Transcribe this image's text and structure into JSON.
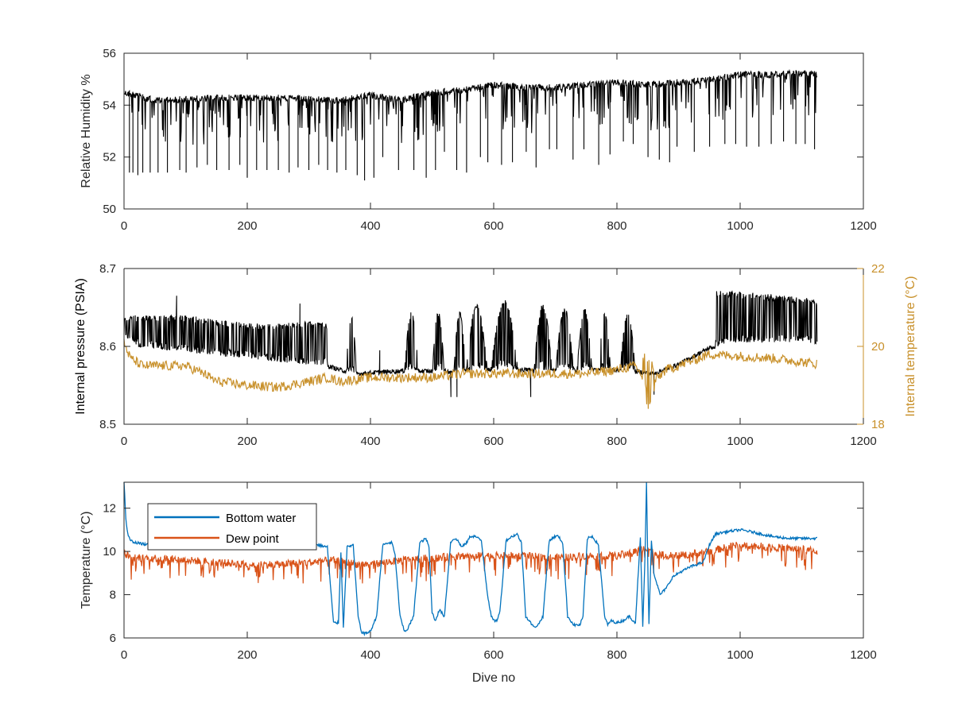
{
  "chart_data": [
    {
      "type": "line",
      "xlabel": "",
      "ylabel": "Relative Humidity %",
      "xlim": [
        0,
        1200
      ],
      "ylim": [
        50,
        56
      ],
      "xticks": [
        0,
        200,
        400,
        600,
        800,
        1000,
        1200
      ],
      "yticks": [
        50,
        52,
        54,
        56
      ],
      "x_tick_labels": [
        "0",
        "200",
        "400",
        "600",
        "800",
        "1000",
        "1200"
      ],
      "y_tick_labels": [
        "50",
        "52",
        "54",
        "56"
      ],
      "grid": false,
      "series": [
        {
          "color": "#000000",
          "envelope_x": [
            0,
            50,
            100,
            150,
            200,
            250,
            300,
            350,
            400,
            450,
            500,
            550,
            600,
            650,
            700,
            750,
            800,
            850,
            900,
            950,
            1000,
            1050,
            1100,
            1125
          ],
          "upper": [
            54.6,
            54.3,
            54.35,
            54.4,
            54.4,
            54.4,
            54.35,
            54.3,
            54.5,
            54.3,
            54.6,
            54.7,
            54.9,
            54.8,
            54.8,
            54.9,
            55.0,
            54.9,
            55.0,
            55.1,
            55.3,
            55.3,
            55.35,
            55.3
          ],
          "dips_x": [
            8,
            14,
            22,
            30,
            42,
            55,
            70,
            90,
            100,
            118,
            135,
            150,
            170,
            188,
            200,
            215,
            232,
            250,
            268,
            282,
            300,
            316,
            330,
            345,
            360,
            378,
            390,
            405,
            420,
            445,
            470,
            490,
            505,
            520,
            540,
            556,
            578,
            590,
            612,
            630,
            652,
            668,
            690,
            702,
            728,
            746,
            770,
            788,
            810,
            826,
            850,
            868,
            885,
            897,
            925,
            950,
            975,
            992,
            1010,
            1030,
            1050,
            1070,
            1090,
            1105,
            1120
          ],
          "dips_y": [
            51.4,
            51.4,
            51.3,
            51.4,
            51.4,
            51.4,
            51.4,
            51.5,
            51.4,
            51.6,
            51.7,
            51.5,
            51.5,
            51.7,
            51.2,
            51.5,
            51.5,
            51.5,
            51.4,
            51.6,
            51.5,
            51.7,
            51.5,
            51.4,
            51.5,
            51.3,
            51.1,
            51.2,
            52.0,
            51.5,
            51.5,
            51.2,
            51.5,
            52.2,
            51.5,
            51.4,
            52.0,
            51.8,
            51.7,
            51.8,
            52.2,
            51.6,
            52.3,
            52.3,
            51.9,
            52.3,
            51.7,
            52.1,
            52.6,
            52.5,
            52.0,
            51.9,
            51.8,
            52.4,
            52.2,
            52.4,
            52.5,
            52.5,
            52.4,
            52.4,
            52.5,
            52.6,
            52.5,
            52.5,
            52.3
          ]
        }
      ]
    },
    {
      "type": "line",
      "xlabel": "",
      "ylabel": "Internal pressure (PSIA)",
      "ylabel_right": "Internal temperature (°C)",
      "xlim": [
        0,
        1200
      ],
      "ylim": [
        8.5,
        8.7
      ],
      "ylim_right": [
        18,
        22
      ],
      "xticks": [
        0,
        200,
        400,
        600,
        800,
        1000,
        1200
      ],
      "yticks": [
        8.5,
        8.6,
        8.7
      ],
      "yticks_right": [
        18,
        20,
        22
      ],
      "x_tick_labels": [
        "0",
        "200",
        "400",
        "600",
        "800",
        "1000",
        "1200"
      ],
      "y_tick_labels": [
        "8.5",
        "8.6",
        "8.7"
      ],
      "y_tick_labels_right": [
        "18",
        "20",
        "22"
      ],
      "grid": false,
      "right_axis_color": "#C8902A",
      "series": [
        {
          "color": "#000000",
          "axis": "left",
          "baseline_x": [
            0,
            20,
            60,
            100,
            150,
            200,
            250,
            300,
            330,
            350,
            380,
            420,
            460,
            500,
            550,
            600,
            650,
            700,
            750,
            800,
            840,
            860,
            900,
            950,
            1000,
            1050,
            1100,
            1125
          ],
          "baseline_y": [
            8.61,
            8.6,
            8.595,
            8.592,
            8.588,
            8.584,
            8.58,
            8.576,
            8.575,
            8.57,
            8.565,
            8.567,
            8.569,
            8.568,
            8.568,
            8.57,
            8.57,
            8.569,
            8.569,
            8.57,
            8.567,
            8.565,
            8.577,
            8.598,
            8.605,
            8.605,
            8.605,
            8.603
          ],
          "top_x": [
            0,
            20,
            60,
            100,
            150,
            200,
            250,
            300,
            330,
            960,
            1000,
            1050,
            1100,
            1125
          ],
          "top_y": [
            8.64,
            8.64,
            8.64,
            8.64,
            8.635,
            8.63,
            8.63,
            8.632,
            8.63,
            8.672,
            8.67,
            8.667,
            8.663,
            8.66
          ],
          "bursts": [
            {
              "x0": 360,
              "x1": 378,
              "peak": 8.64
            },
            {
              "x0": 455,
              "x1": 478,
              "peak": 8.645
            },
            {
              "x0": 500,
              "x1": 520,
              "peak": 8.645
            },
            {
              "x0": 535,
              "x1": 555,
              "peak": 8.645
            },
            {
              "x0": 555,
              "x1": 590,
              "peak": 8.655
            },
            {
              "x0": 595,
              "x1": 640,
              "peak": 8.66
            },
            {
              "x0": 665,
              "x1": 695,
              "peak": 8.655
            },
            {
              "x0": 700,
              "x1": 730,
              "peak": 8.65
            },
            {
              "x0": 735,
              "x1": 760,
              "peak": 8.65
            },
            {
              "x0": 770,
              "x1": 790,
              "peak": 8.645
            },
            {
              "x0": 805,
              "x1": 830,
              "peak": 8.645
            }
          ],
          "spikes_x": [
            85,
            285,
            415,
            530,
            540,
            660,
            850,
            860
          ],
          "spikes_y": [
            8.665,
            8.655,
            8.595,
            8.535,
            8.535,
            8.535,
            8.535,
            8.538
          ]
        },
        {
          "color": "#C8902A",
          "axis": "right",
          "x": [
            0,
            10,
            30,
            60,
            100,
            130,
            150,
            200,
            250,
            300,
            330,
            350,
            400,
            450,
            500,
            550,
            600,
            650,
            700,
            750,
            800,
            830,
            850,
            860,
            880,
            900,
            950,
            1000,
            1050,
            1100,
            1125
          ],
          "y": [
            20.1,
            19.7,
            19.5,
            19.5,
            19.5,
            19.3,
            19.1,
            19.0,
            18.95,
            19.1,
            19.2,
            19.1,
            19.2,
            19.2,
            19.2,
            19.3,
            19.3,
            19.3,
            19.3,
            19.3,
            19.4,
            19.5,
            19.0,
            19.1,
            19.4,
            19.5,
            19.8,
            19.75,
            19.7,
            19.6,
            19.55
          ]
        }
      ]
    },
    {
      "type": "line",
      "xlabel": "Dive no",
      "ylabel": "Temperature (°C)",
      "xlim": [
        0,
        1200
      ],
      "ylim": [
        6,
        13.2
      ],
      "xticks": [
        0,
        200,
        400,
        600,
        800,
        1000,
        1200
      ],
      "yticks": [
        6,
        8,
        10,
        12
      ],
      "x_tick_labels": [
        "0",
        "200",
        "400",
        "600",
        "800",
        "1000",
        "1200"
      ],
      "y_tick_labels": [
        "6",
        "8",
        "10",
        "12"
      ],
      "grid": false,
      "legend": "top-left",
      "series": [
        {
          "name": "Bottom water",
          "color": "#0072BD",
          "x": [
            0,
            3,
            6,
            10,
            20,
            40,
            80,
            150,
            200,
            250,
            300,
            330,
            340,
            348,
            352,
            356,
            362,
            372,
            380,
            385,
            390,
            400,
            410,
            420,
            430,
            435,
            440,
            448,
            455,
            460,
            470,
            480,
            490,
            495,
            500,
            505,
            512,
            520,
            530,
            535,
            542,
            548,
            556,
            562,
            570,
            580,
            590,
            596,
            600,
            605,
            610,
            620,
            630,
            638,
            645,
            652,
            660,
            665,
            672,
            680,
            690,
            700,
            705,
            712,
            720,
            730,
            740,
            745,
            752,
            760,
            770,
            780,
            785,
            790,
            800,
            810,
            820,
            830,
            838,
            842,
            846,
            848,
            850,
            852,
            856,
            860,
            870,
            880,
            890,
            900,
            920,
            940,
            950,
            960,
            975,
            1000,
            1020,
            1050,
            1080,
            1100,
            1125
          ],
          "y": [
            13.2,
            11.5,
            10.8,
            10.5,
            10.4,
            10.3,
            10.2,
            10.2,
            10.3,
            10.3,
            10.4,
            10.2,
            6.7,
            6.7,
            10.0,
            6.5,
            10.2,
            10.3,
            7.0,
            6.3,
            6.2,
            6.3,
            7.0,
            10.3,
            10.4,
            10.4,
            9.8,
            7.0,
            6.3,
            6.4,
            7.0,
            10.4,
            10.6,
            10.2,
            7.2,
            6.8,
            7.3,
            7.0,
            10.4,
            10.6,
            10.5,
            10.2,
            10.4,
            10.7,
            10.7,
            10.5,
            8.0,
            7.0,
            6.8,
            6.8,
            7.2,
            10.5,
            10.7,
            10.8,
            10.4,
            7.0,
            6.7,
            6.5,
            6.6,
            7.0,
            10.5,
            10.7,
            10.7,
            10.4,
            7.0,
            6.6,
            6.6,
            7.0,
            10.6,
            10.7,
            10.3,
            7.0,
            6.6,
            6.8,
            6.7,
            6.8,
            7.0,
            6.7,
            10.6,
            6.5,
            10.2,
            13.2,
            9.5,
            6.7,
            10.5,
            9.0,
            8.0,
            8.3,
            8.8,
            9.0,
            9.3,
            9.5,
            10.3,
            10.8,
            10.9,
            11.0,
            10.9,
            10.7,
            10.6,
            10.6,
            10.6
          ]
        },
        {
          "name": "Dew point",
          "color": "#D95319",
          "x": [
            0,
            10,
            50,
            100,
            150,
            200,
            250,
            300,
            340,
            360,
            380,
            400,
            450,
            500,
            550,
            600,
            650,
            700,
            750,
            800,
            830,
            850,
            860,
            880,
            900,
            950,
            980,
            1000,
            1050,
            1100,
            1125
          ],
          "y": [
            10.0,
            9.7,
            9.7,
            9.6,
            9.5,
            9.4,
            9.4,
            9.5,
            9.6,
            9.5,
            9.4,
            9.4,
            9.6,
            9.7,
            9.8,
            9.8,
            9.8,
            9.7,
            9.8,
            9.8,
            10.0,
            10.2,
            9.9,
            9.8,
            9.8,
            10.0,
            10.2,
            10.3,
            10.2,
            10.1,
            10.0
          ]
        }
      ]
    }
  ]
}
